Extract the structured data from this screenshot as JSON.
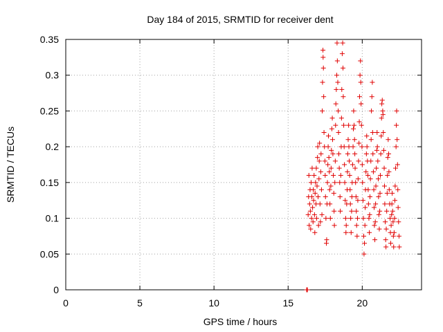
{
  "chart_data": {
    "type": "scatter",
    "title": "Day 184 of 2015, SRMTID for receiver dent",
    "xlabel": "GPS time / hours",
    "ylabel": "SRMTID / TECUs",
    "xlim": [
      0,
      24
    ],
    "ylim": [
      0,
      0.35
    ],
    "xticks": [
      0,
      5,
      10,
      15,
      20
    ],
    "xtick_labels": [
      "0",
      "5",
      "10",
      "15",
      "20"
    ],
    "yticks": [
      0,
      0.05,
      0.1,
      0.15,
      0.2,
      0.25,
      0.3,
      0.35
    ],
    "ytick_labels": [
      "0",
      "0.05",
      "0.1",
      "0.15",
      "0.2",
      "0.25",
      "0.3",
      "0.35"
    ],
    "grid": true,
    "legend": "none",
    "marker": "plus",
    "color": "#e00000",
    "series": [
      {
        "values": [
          [
            16.25,
            0.0
          ],
          [
            16.27,
            0.0
          ],
          [
            16.3,
            0.0
          ],
          [
            16.35,
            0.105
          ],
          [
            16.38,
            0.13
          ],
          [
            16.4,
            0.16
          ],
          [
            16.42,
            0.09
          ],
          [
            16.45,
            0.12
          ],
          [
            16.48,
            0.14
          ],
          [
            16.5,
            0.11
          ],
          [
            16.52,
            0.085
          ],
          [
            16.55,
            0.15
          ],
          [
            16.58,
            0.1
          ],
          [
            16.6,
            0.13
          ],
          [
            16.62,
            0.17
          ],
          [
            16.65,
            0.115
          ],
          [
            16.68,
            0.095
          ],
          [
            16.7,
            0.14
          ],
          [
            16.72,
            0.125
          ],
          [
            16.75,
            0.16
          ],
          [
            16.78,
            0.105
          ],
          [
            16.8,
            0.08
          ],
          [
            16.82,
            0.135
          ],
          [
            16.85,
            0.15
          ],
          [
            16.88,
            0.12
          ],
          [
            16.9,
            0.17
          ],
          [
            16.92,
            0.1
          ],
          [
            16.95,
            0.145
          ],
          [
            16.98,
            0.185
          ],
          [
            17.0,
            0.2
          ],
          [
            17.02,
            0.13
          ],
          [
            17.05,
            0.09
          ],
          [
            17.08,
            0.155
          ],
          [
            17.1,
            0.18
          ],
          [
            17.12,
            0.205
          ],
          [
            17.15,
            0.12
          ],
          [
            17.18,
            0.095
          ],
          [
            17.2,
            0.165
          ],
          [
            17.22,
            0.19
          ],
          [
            17.25,
            0.14
          ],
          [
            17.28,
            0.105
          ],
          [
            17.3,
            0.25
          ],
          [
            17.32,
            0.29
          ],
          [
            17.35,
            0.335
          ],
          [
            17.36,
            0.325
          ],
          [
            17.38,
            0.31
          ],
          [
            17.4,
            0.27
          ],
          [
            17.42,
            0.22
          ],
          [
            17.45,
            0.2
          ],
          [
            17.48,
            0.18
          ],
          [
            17.5,
            0.16
          ],
          [
            17.52,
            0.13
          ],
          [
            17.55,
            0.1
          ],
          [
            17.58,
            0.065
          ],
          [
            17.6,
            0.07
          ],
          [
            17.62,
            0.12
          ],
          [
            17.65,
            0.15
          ],
          [
            17.68,
            0.175
          ],
          [
            17.7,
            0.2
          ],
          [
            17.72,
            0.215
          ],
          [
            17.75,
            0.185
          ],
          [
            17.78,
            0.165
          ],
          [
            17.8,
            0.14
          ],
          [
            17.82,
            0.12
          ],
          [
            17.85,
            0.1
          ],
          [
            17.88,
            0.145
          ],
          [
            17.9,
            0.17
          ],
          [
            17.92,
            0.195
          ],
          [
            17.95,
            0.225
          ],
          [
            17.98,
            0.24
          ],
          [
            18.0,
            0.21
          ],
          [
            18.02,
            0.19
          ],
          [
            18.05,
            0.16
          ],
          [
            18.08,
            0.135
          ],
          [
            18.1,
            0.11
          ],
          [
            18.12,
            0.09
          ],
          [
            18.15,
            0.15
          ],
          [
            18.18,
            0.18
          ],
          [
            18.2,
            0.23
          ],
          [
            18.22,
            0.26
          ],
          [
            18.25,
            0.28
          ],
          [
            18.28,
            0.3
          ],
          [
            18.3,
            0.345
          ],
          [
            18.32,
            0.32
          ],
          [
            18.35,
            0.29
          ],
          [
            18.38,
            0.25
          ],
          [
            18.4,
            0.22
          ],
          [
            18.42,
            0.19
          ],
          [
            18.45,
            0.17
          ],
          [
            18.48,
            0.15
          ],
          [
            18.5,
            0.13
          ],
          [
            18.52,
            0.11
          ],
          [
            18.55,
            0.16
          ],
          [
            18.58,
            0.2
          ],
          [
            18.6,
            0.24
          ],
          [
            18.62,
            0.28
          ],
          [
            18.65,
            0.33
          ],
          [
            18.68,
            0.345
          ],
          [
            18.7,
            0.31
          ],
          [
            18.72,
            0.27
          ],
          [
            18.75,
            0.23
          ],
          [
            18.78,
            0.2
          ],
          [
            18.8,
            0.175
          ],
          [
            18.82,
            0.15
          ],
          [
            18.85,
            0.125
          ],
          [
            18.88,
            0.1
          ],
          [
            18.9,
            0.08
          ],
          [
            18.92,
            0.09
          ],
          [
            18.95,
            0.12
          ],
          [
            18.98,
            0.14
          ],
          [
            19.0,
            0.165
          ],
          [
            19.02,
            0.19
          ],
          [
            19.05,
            0.21
          ],
          [
            19.08,
            0.23
          ],
          [
            19.1,
            0.2
          ],
          [
            19.12,
            0.18
          ],
          [
            19.15,
            0.16
          ],
          [
            19.18,
            0.14
          ],
          [
            19.2,
            0.12
          ],
          [
            19.22,
            0.1
          ],
          [
            19.25,
            0.08
          ],
          [
            19.28,
            0.11
          ],
          [
            19.3,
            0.13
          ],
          [
            19.32,
            0.15
          ],
          [
            19.35,
            0.175
          ],
          [
            19.38,
            0.2
          ],
          [
            19.4,
            0.225
          ],
          [
            19.42,
            0.25
          ],
          [
            19.45,
            0.23
          ],
          [
            19.48,
            0.21
          ],
          [
            19.5,
            0.19
          ],
          [
            19.52,
            0.17
          ],
          [
            19.55,
            0.15
          ],
          [
            19.58,
            0.13
          ],
          [
            19.6,
            0.11
          ],
          [
            19.62,
            0.09
          ],
          [
            19.65,
            0.075
          ],
          [
            19.68,
            0.1
          ],
          [
            19.7,
            0.125
          ],
          [
            19.72,
            0.155
          ],
          [
            19.75,
            0.18
          ],
          [
            19.78,
            0.205
          ],
          [
            19.8,
            0.235
          ],
          [
            19.82,
            0.27
          ],
          [
            19.85,
            0.3
          ],
          [
            19.88,
            0.32
          ],
          [
            19.9,
            0.29
          ],
          [
            19.92,
            0.26
          ],
          [
            19.95,
            0.23
          ],
          [
            19.98,
            0.2
          ],
          [
            20.0,
            0.175
          ],
          [
            20.02,
            0.15
          ],
          [
            20.05,
            0.125
          ],
          [
            20.08,
            0.1
          ],
          [
            20.1,
            0.075
          ],
          [
            20.12,
            0.05
          ],
          [
            20.15,
            0.065
          ],
          [
            20.18,
            0.09
          ],
          [
            20.2,
            0.115
          ],
          [
            20.22,
            0.14
          ],
          [
            20.25,
            0.165
          ],
          [
            20.28,
            0.19
          ],
          [
            20.3,
            0.215
          ],
          [
            20.32,
            0.2
          ],
          [
            20.35,
            0.18
          ],
          [
            20.38,
            0.16
          ],
          [
            20.4,
            0.14
          ],
          [
            20.42,
            0.12
          ],
          [
            20.45,
            0.1
          ],
          [
            20.48,
            0.08
          ],
          [
            20.5,
            0.105
          ],
          [
            20.52,
            0.13
          ],
          [
            20.55,
            0.155
          ],
          [
            20.58,
            0.18
          ],
          [
            20.6,
            0.21
          ],
          [
            20.62,
            0.25
          ],
          [
            20.65,
            0.27
          ],
          [
            20.68,
            0.29
          ],
          [
            20.7,
            0.22
          ],
          [
            20.72,
            0.19
          ],
          [
            20.75,
            0.165
          ],
          [
            20.78,
            0.14
          ],
          [
            20.8,
            0.115
          ],
          [
            20.82,
            0.09
          ],
          [
            20.85,
            0.07
          ],
          [
            20.88,
            0.095
          ],
          [
            20.9,
            0.12
          ],
          [
            20.92,
            0.145
          ],
          [
            20.95,
            0.17
          ],
          [
            20.98,
            0.195
          ],
          [
            21.0,
            0.22
          ],
          [
            21.02,
            0.2
          ],
          [
            21.05,
            0.18
          ],
          [
            21.08,
            0.155
          ],
          [
            21.1,
            0.13
          ],
          [
            21.12,
            0.105
          ],
          [
            21.15,
            0.085
          ],
          [
            21.18,
            0.11
          ],
          [
            21.2,
            0.135
          ],
          [
            21.22,
            0.16
          ],
          [
            21.25,
            0.19
          ],
          [
            21.28,
            0.215
          ],
          [
            21.3,
            0.24
          ],
          [
            21.32,
            0.26
          ],
          [
            21.35,
            0.265
          ],
          [
            21.38,
            0.25
          ],
          [
            21.4,
            0.245
          ],
          [
            21.42,
            0.22
          ],
          [
            21.45,
            0.195
          ],
          [
            21.48,
            0.17
          ],
          [
            21.5,
            0.145
          ],
          [
            21.52,
            0.12
          ],
          [
            21.55,
            0.095
          ],
          [
            21.58,
            0.07
          ],
          [
            21.6,
            0.06
          ],
          [
            21.62,
            0.085
          ],
          [
            21.65,
            0.11
          ],
          [
            21.68,
            0.135
          ],
          [
            21.7,
            0.16
          ],
          [
            21.72,
            0.185
          ],
          [
            21.75,
            0.21
          ],
          [
            21.78,
            0.19
          ],
          [
            21.8,
            0.165
          ],
          [
            21.82,
            0.14
          ],
          [
            21.85,
            0.12
          ],
          [
            21.88,
            0.1
          ],
          [
            21.9,
            0.08
          ],
          [
            21.92,
            0.065
          ],
          [
            21.95,
            0.09
          ],
          [
            21.98,
            0.105
          ],
          [
            22.0,
            0.12
          ],
          [
            22.02,
            0.135
          ],
          [
            22.05,
            0.11
          ],
          [
            22.08,
            0.095
          ],
          [
            22.1,
            0.075
          ],
          [
            22.12,
            0.06
          ],
          [
            22.15,
            0.08
          ],
          [
            22.18,
            0.1
          ],
          [
            22.2,
            0.125
          ],
          [
            22.22,
            0.145
          ],
          [
            22.25,
            0.17
          ],
          [
            22.28,
            0.2
          ],
          [
            22.3,
            0.23
          ],
          [
            22.32,
            0.25
          ],
          [
            22.35,
            0.21
          ],
          [
            22.38,
            0.175
          ],
          [
            22.4,
            0.14
          ],
          [
            22.42,
            0.115
          ],
          [
            22.45,
            0.095
          ],
          [
            22.48,
            0.075
          ],
          [
            22.5,
            0.06
          ]
        ]
      }
    ]
  }
}
